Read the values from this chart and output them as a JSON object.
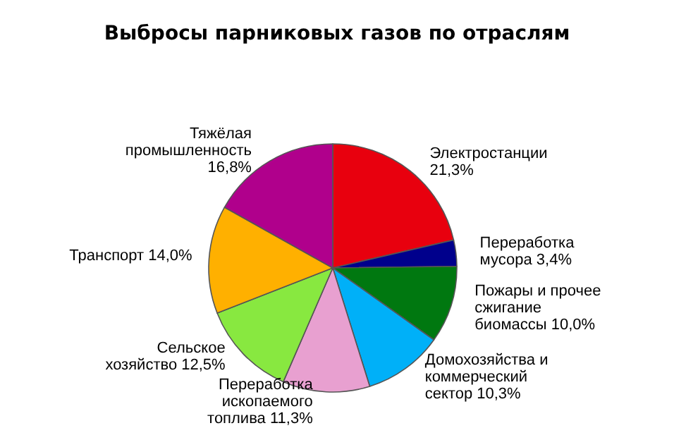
{
  "chart_data": {
    "type": "pie",
    "title": "Выбросы парниковых газов по отраслям",
    "categories": [
      "Электростанции",
      "Переработка мусора",
      "Пожары и прочее сжигание биомассы",
      "Домохозяйства и коммерческий сектор",
      "Переработка ископаемого топлива",
      "Сельское хозяйство",
      "Транспорт",
      "Тяжёлая промышленность"
    ],
    "values": [
      21.3,
      3.4,
      10.0,
      10.3,
      11.3,
      12.5,
      14.0,
      16.8
    ],
    "value_labels": [
      "21,3%",
      "3,4%",
      "10,0%",
      "10,3%",
      "11,3%",
      "12,5%",
      "14,0%",
      "16,8%"
    ],
    "colors": [
      "#e8000e",
      "#00008c",
      "#007810",
      "#00b0f8",
      "#e8a0d0",
      "#88e840",
      "#ffb000",
      "#b0008c"
    ],
    "legend": false
  }
}
